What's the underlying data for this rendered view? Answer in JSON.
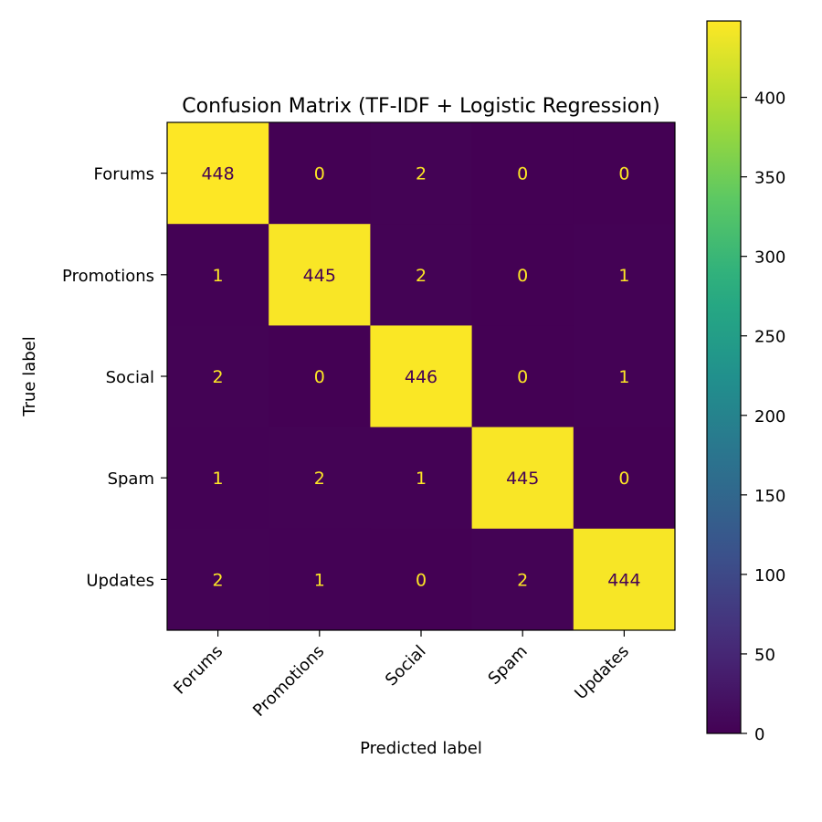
{
  "chart_data": {
    "type": "heatmap",
    "title": "Confusion Matrix (TF-IDF + Logistic Regression)",
    "xlabel": "Predicted label",
    "ylabel": "True label",
    "x_categories": [
      "Forums",
      "Promotions",
      "Social",
      "Spam",
      "Updates"
    ],
    "y_categories": [
      "Forums",
      "Promotions",
      "Social",
      "Spam",
      "Updates"
    ],
    "matrix": [
      [
        448,
        0,
        2,
        0,
        0
      ],
      [
        1,
        445,
        2,
        0,
        1
      ],
      [
        2,
        0,
        446,
        0,
        1
      ],
      [
        1,
        2,
        1,
        445,
        0
      ],
      [
        2,
        1,
        0,
        2,
        444
      ]
    ],
    "colormap": "viridis",
    "colorbar": {
      "range": [
        0,
        448
      ],
      "ticks": [
        0,
        50,
        100,
        150,
        200,
        250,
        300,
        350,
        400
      ]
    },
    "text_colors": {
      "on_dark": "#fde725",
      "on_light": "#440154"
    },
    "grid": false
  }
}
